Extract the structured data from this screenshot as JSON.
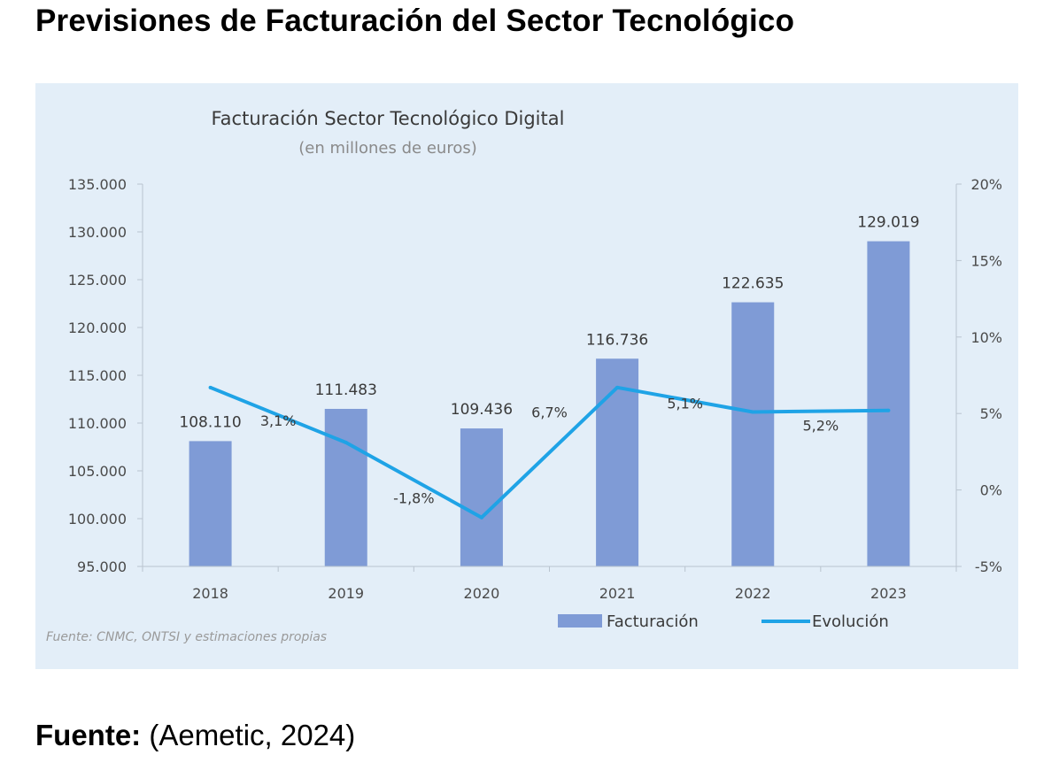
{
  "page": {
    "heading": "Previsiones de Facturación del Sector Tecnológico",
    "footer_label": "Fuente:",
    "footer_text": " (Aemetic, 2024)"
  },
  "chart_data": {
    "type": "bar",
    "title": "Facturación Sector Tecnológico Digital",
    "subtitle": "(en millones de euros)",
    "source": "Fuente: CNMC, ONTSI y estimaciones propias",
    "categories": [
      "2018",
      "2019",
      "2020",
      "2021",
      "2022",
      "2023"
    ],
    "series": [
      {
        "name": "Facturación",
        "type": "bar",
        "axis": "left",
        "values": [
          108110,
          111483,
          109436,
          116736,
          122635,
          129019
        ],
        "labels": [
          "108.110",
          "111.483",
          "109.436",
          "116.736",
          "122.635",
          "129.019"
        ],
        "color": "#7f9bd6"
      },
      {
        "name": "Evolución",
        "type": "line",
        "axis": "right",
        "values": [
          6.7,
          3.1,
          -1.8,
          6.7,
          5.1,
          5.2
        ],
        "color": "#1fa3e6"
      }
    ],
    "point_labels": [
      {
        "text": "3,1%",
        "between": [
          0,
          1
        ]
      },
      {
        "text": "-1,8%",
        "between": [
          1,
          2
        ]
      },
      {
        "text": "6,7%",
        "between": [
          2,
          3
        ]
      },
      {
        "text": "5,1%",
        "between": [
          3,
          4
        ]
      },
      {
        "text": "5,2%",
        "between": [
          4,
          5
        ]
      }
    ],
    "left_axis": {
      "ylim": [
        95000,
        135000
      ],
      "ticks": [
        95000,
        100000,
        105000,
        110000,
        115000,
        120000,
        125000,
        130000,
        135000
      ],
      "tick_labels": [
        "95.000",
        "100.000",
        "105.000",
        "110.000",
        "115.000",
        "120.000",
        "125.000",
        "130.000",
        "135.000"
      ]
    },
    "right_axis": {
      "ylim": [
        -5,
        20
      ],
      "ticks": [
        -5,
        0,
        5,
        10,
        15,
        20
      ],
      "tick_labels": [
        "-5%",
        "0%",
        "5%",
        "10%",
        "15%",
        "20%"
      ]
    },
    "grid": false,
    "legend": {
      "position": "bottom-right",
      "entries": [
        "Facturación",
        "Evolución"
      ]
    },
    "colors": {
      "panel_bg": "#e3eef8",
      "axis": "#b9c4cf"
    }
  }
}
